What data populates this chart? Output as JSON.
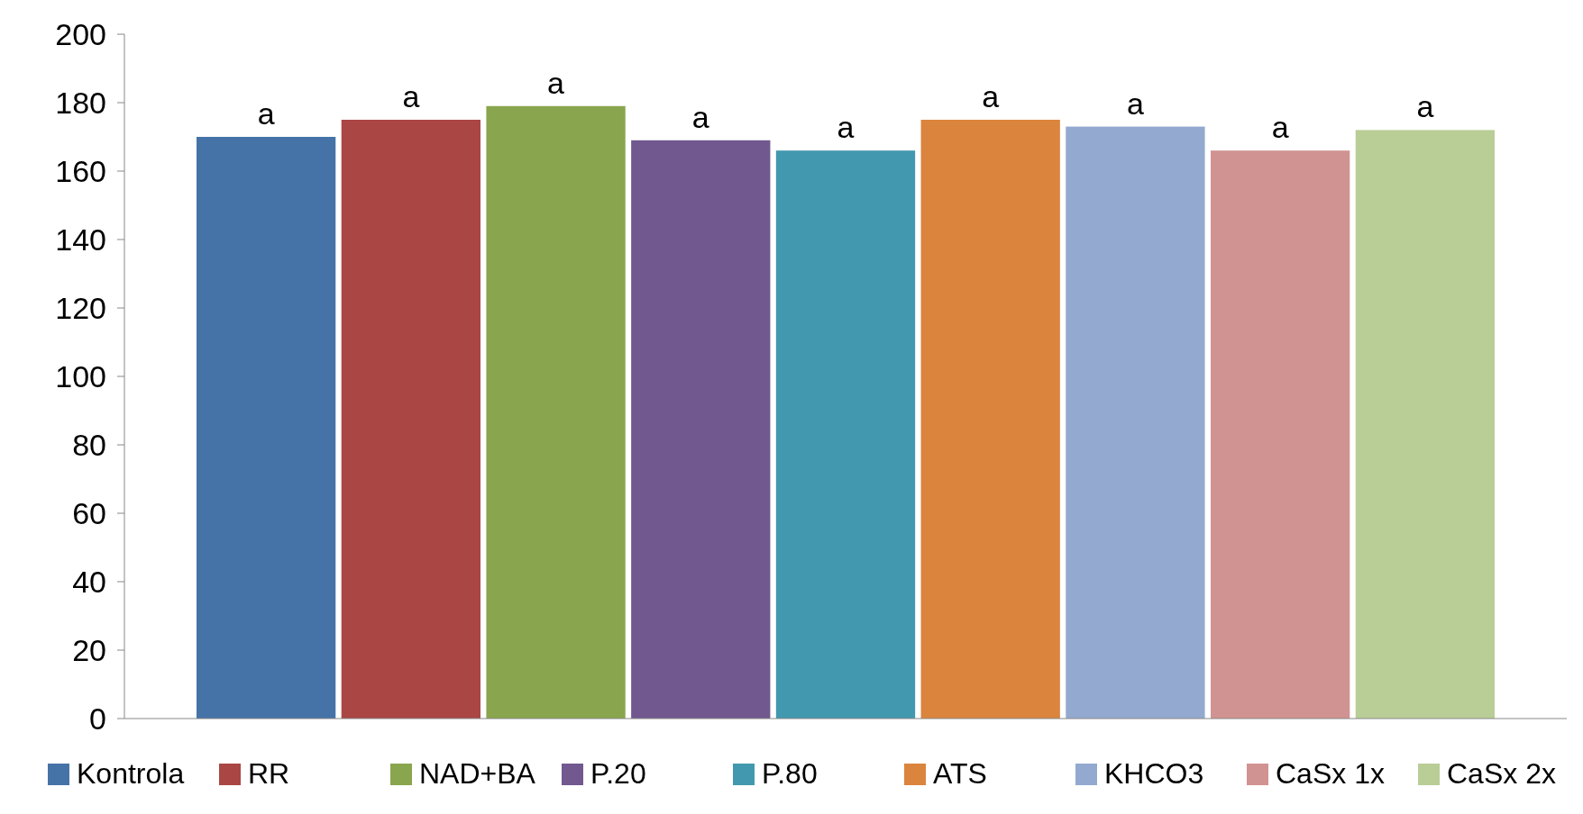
{
  "chart_data": {
    "type": "bar",
    "categories": [
      null
    ],
    "series": [
      {
        "name": "Kontrola",
        "color": "#4573a7",
        "values": [
          170
        ],
        "value_labels": [
          "a"
        ]
      },
      {
        "name": "RR",
        "color": "#aa4644",
        "values": [
          175
        ],
        "value_labels": [
          "a"
        ]
      },
      {
        "name": "NAD+BA",
        "color": "#89a54e",
        "values": [
          179
        ],
        "value_labels": [
          "a"
        ]
      },
      {
        "name": "P.20",
        "color": "#71588f",
        "values": [
          169
        ],
        "value_labels": [
          "a"
        ]
      },
      {
        "name": "P.80",
        "color": "#4298af",
        "values": [
          166
        ],
        "value_labels": [
          "a"
        ]
      },
      {
        "name": "ATS",
        "color": "#db843d",
        "values": [
          175
        ],
        "value_labels": [
          "a"
        ]
      },
      {
        "name": "KHCO3",
        "color": "#93a9cf",
        "values": [
          173
        ],
        "value_labels": [
          "a"
        ]
      },
      {
        "name": "CaSx 1x",
        "color": "#d19392",
        "values": [
          166
        ],
        "value_labels": [
          "a"
        ]
      },
      {
        "name": "CaSx 2x",
        "color": "#b9cd96",
        "values": [
          172
        ],
        "value_labels": [
          "a"
        ]
      }
    ],
    "ylim": [
      0,
      200
    ],
    "yticks": [
      0,
      20,
      40,
      60,
      80,
      100,
      120,
      140,
      160,
      180,
      200
    ],
    "grid": false,
    "legend": "bottom"
  }
}
